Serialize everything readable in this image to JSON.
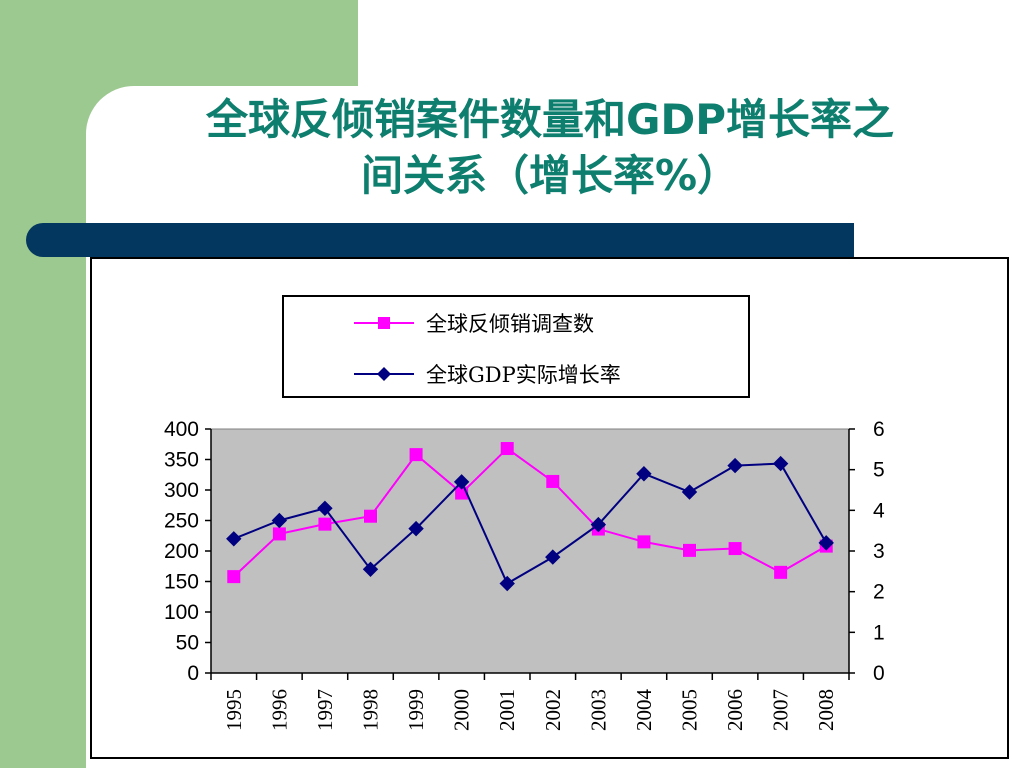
{
  "slide": {
    "title_line1": "全球反倾销案件数量和GDP增长率之",
    "title_line2": "间关系（增长率%）"
  },
  "colors": {
    "background_green": "#9cc98f",
    "title": "#0e7e6e",
    "bar": "#03375f",
    "plot_area": "#c0c0c0",
    "series_antidumping": "#ff00ff",
    "series_gdp": "#000080"
  },
  "chart_data": {
    "type": "line",
    "categories": [
      "1995",
      "1996",
      "1997",
      "1998",
      "1999",
      "2000",
      "2001",
      "2002",
      "2003",
      "2004",
      "2005",
      "2006",
      "2007",
      "2008"
    ],
    "series": [
      {
        "name": "全球反倾销调查数",
        "axis": "left",
        "marker": "square",
        "values": [
          158,
          228,
          244,
          257,
          358,
          295,
          368,
          314,
          236,
          215,
          201,
          204,
          165,
          208
        ]
      },
      {
        "name": "全球GDP实际增长率",
        "axis": "right",
        "marker": "diamond",
        "values": [
          3.3,
          3.75,
          4.05,
          2.55,
          3.55,
          4.7,
          2.2,
          2.85,
          3.65,
          4.9,
          4.45,
          5.1,
          5.15,
          3.2
        ]
      }
    ],
    "y_left": {
      "lim": [
        0,
        400
      ],
      "ticks": [
        "0",
        "50",
        "100",
        "150",
        "200",
        "250",
        "300",
        "350",
        "400"
      ]
    },
    "y_right": {
      "lim": [
        0,
        6
      ],
      "ticks": [
        "0",
        "1",
        "2",
        "3",
        "4",
        "5",
        "6"
      ]
    },
    "legend": "top-center",
    "grid": false
  }
}
